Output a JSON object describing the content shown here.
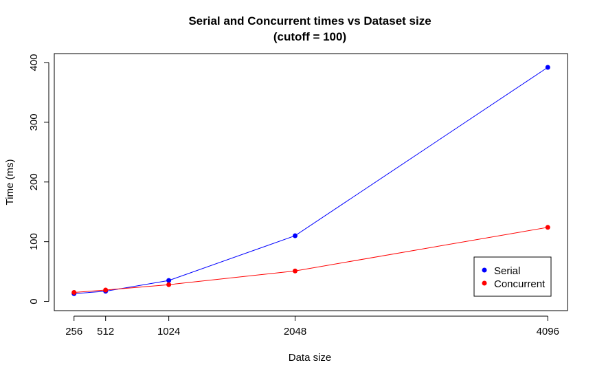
{
  "chart_data": {
    "type": "line",
    "title": "Serial and Concurrent times vs Dataset size",
    "subtitle": "(cutoff = 100)",
    "xlabel": "Data size",
    "ylabel": "Time (ms)",
    "x": [
      256,
      512,
      1024,
      2048,
      4096
    ],
    "x_tick_labels": [
      "256",
      "512",
      "1024",
      "2048",
      "4096"
    ],
    "y_ticks": [
      0,
      100,
      200,
      300,
      400
    ],
    "y_tick_labels": [
      "0",
      "100",
      "200",
      "300",
      "400"
    ],
    "xlim": [
      96,
      4256
    ],
    "ylim": [
      -15.5,
      415
    ],
    "grid": false,
    "legend_position": "bottom-right",
    "series": [
      {
        "name": "Serial",
        "color": "#0000ff",
        "values": [
          13,
          17,
          35,
          110,
          392
        ]
      },
      {
        "name": "Concurrent",
        "color": "#ff0000",
        "values": [
          15,
          19,
          28,
          51,
          124
        ]
      }
    ]
  }
}
